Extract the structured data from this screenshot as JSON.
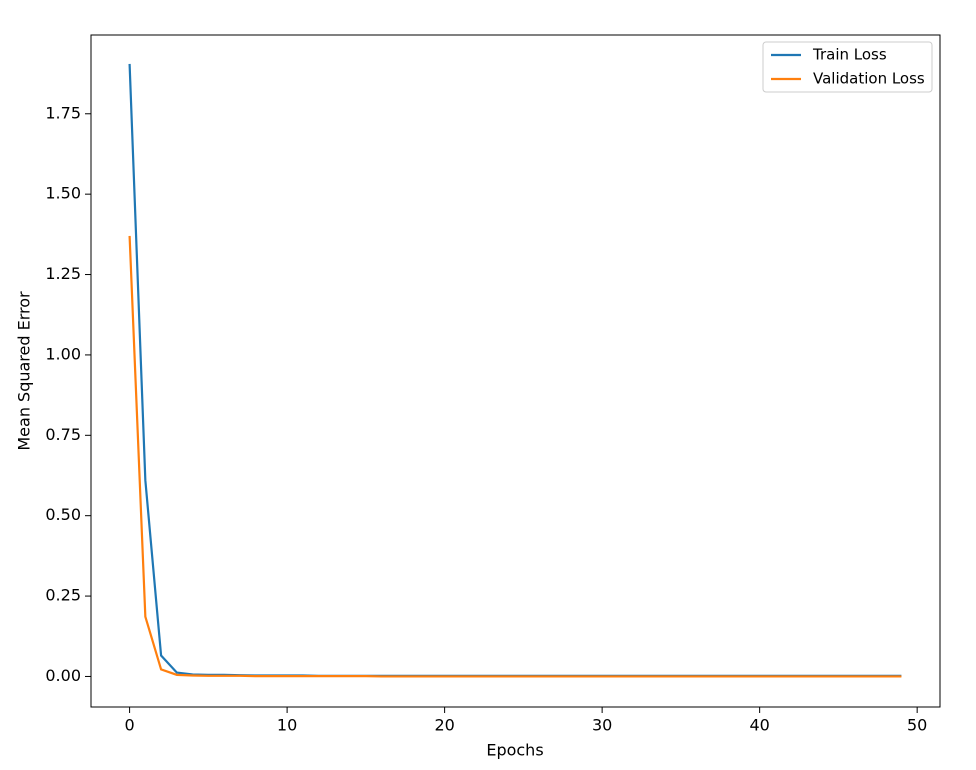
{
  "chart_data": {
    "type": "line",
    "x_label": "Epochs",
    "y_label": "Mean Squared Error",
    "x": [
      0,
      1,
      2,
      3,
      4,
      5,
      6,
      7,
      8,
      9,
      10,
      11,
      12,
      13,
      14,
      15,
      16,
      17,
      18,
      19,
      20,
      21,
      22,
      23,
      24,
      25,
      26,
      27,
      28,
      29,
      30,
      31,
      32,
      33,
      34,
      35,
      36,
      37,
      38,
      39,
      40,
      41,
      42,
      43,
      44,
      45,
      46,
      47,
      48,
      49
    ],
    "series": [
      {
        "name": "Train Loss",
        "color": "#1f77b4",
        "values": [
          1.905,
          0.61,
          0.065,
          0.012,
          0.006,
          0.005,
          0.005,
          0.004,
          0.003,
          0.003,
          0.003,
          0.003,
          0.002,
          0.002,
          0.002,
          0.002,
          0.002,
          0.002,
          0.002,
          0.002,
          0.002,
          0.002,
          0.002,
          0.002,
          0.002,
          0.002,
          0.002,
          0.002,
          0.002,
          0.002,
          0.002,
          0.002,
          0.002,
          0.002,
          0.002,
          0.002,
          0.002,
          0.002,
          0.002,
          0.002,
          0.002,
          0.002,
          0.002,
          0.002,
          0.002,
          0.002,
          0.002,
          0.002,
          0.002,
          0.002
        ]
      },
      {
        "name": "Validation Loss",
        "color": "#ff7f0e",
        "values": [
          1.37,
          0.186,
          0.022,
          0.005,
          0.003,
          0.002,
          0.002,
          0.002,
          0.001,
          0.001,
          0.001,
          0.001,
          0.001,
          0.001,
          0.001,
          0.001,
          0,
          0,
          0,
          0,
          0,
          0,
          0,
          0,
          0,
          0,
          0,
          0,
          0,
          0,
          0,
          0,
          0,
          0,
          0,
          0,
          0,
          0,
          0,
          0,
          0,
          0,
          0,
          0,
          0,
          0,
          0,
          0,
          0,
          0
        ]
      }
    ],
    "xlim": [
      -2.45,
      51.45
    ],
    "xticks": [
      0,
      10,
      20,
      30,
      40,
      50
    ],
    "ylim": [
      -0.095,
      1.995
    ],
    "yticks": [
      {
        "value": 0,
        "label": "0.00"
      },
      {
        "value": 0.25,
        "label": "0.25"
      },
      {
        "value": 0.5,
        "label": "0.50"
      },
      {
        "value": 0.75,
        "label": "0.75"
      },
      {
        "value": 1,
        "label": "1.00"
      },
      {
        "value": 1.25,
        "label": "1.25"
      },
      {
        "value": 1.5,
        "label": "1.50"
      },
      {
        "value": 1.75,
        "label": "1.75"
      }
    ],
    "legend": "upper right"
  }
}
